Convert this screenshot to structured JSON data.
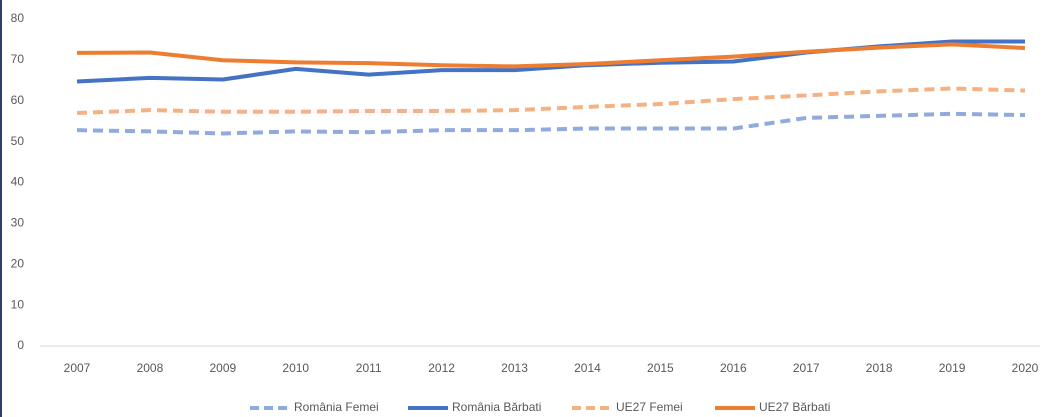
{
  "chart_data": {
    "type": "line",
    "x": [
      2007,
      2008,
      2009,
      2010,
      2011,
      2012,
      2013,
      2014,
      2015,
      2016,
      2017,
      2018,
      2019,
      2020
    ],
    "series": [
      {
        "name": "România Femei",
        "color": "#8faadc",
        "dashed": true,
        "values": [
          52.8,
          52.5,
          52.0,
          52.5,
          52.3,
          52.8,
          52.8,
          53.2,
          53.2,
          53.2,
          55.8,
          56.3,
          56.8,
          56.5
        ]
      },
      {
        "name": "România Bărbati",
        "color": "#4472c4",
        "dashed": false,
        "values": [
          64.7,
          65.6,
          65.2,
          67.8,
          66.4,
          67.5,
          67.5,
          68.7,
          69.3,
          69.6,
          71.8,
          73.3,
          74.5,
          74.5
        ]
      },
      {
        "name": "UE27 Femei",
        "color": "#f4b183",
        "dashed": true,
        "values": [
          57.0,
          57.7,
          57.3,
          57.3,
          57.5,
          57.5,
          57.7,
          58.5,
          59.2,
          60.4,
          61.3,
          62.3,
          63.0,
          62.5
        ]
      },
      {
        "name": "UE27 Bărbati",
        "color": "#ed7d31",
        "dashed": false,
        "values": [
          71.7,
          71.8,
          69.9,
          69.4,
          69.2,
          68.7,
          68.4,
          69.0,
          69.9,
          70.8,
          72.0,
          73.0,
          73.8,
          72.9
        ]
      }
    ],
    "ylim": [
      0,
      80
    ],
    "yticks": [
      0,
      10,
      20,
      30,
      40,
      50,
      60,
      70,
      80
    ],
    "grid": false,
    "legend": "bottom"
  }
}
